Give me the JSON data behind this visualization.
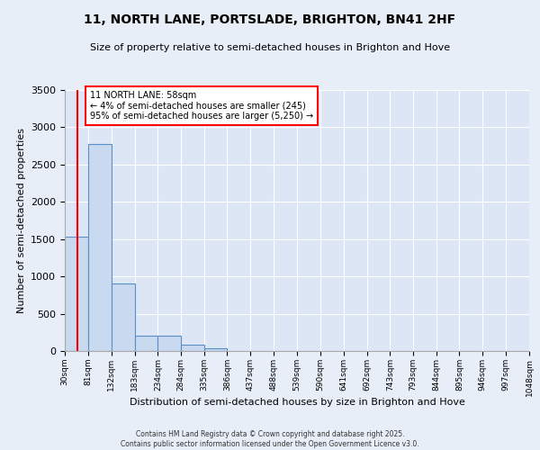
{
  "title": "11, NORTH LANE, PORTSLADE, BRIGHTON, BN41 2HF",
  "subtitle": "Size of property relative to semi-detached houses in Brighton and Hove",
  "xlabel": "Distribution of semi-detached houses by size in Brighton and Hove",
  "ylabel": "Number of semi-detached properties",
  "footer_line1": "Contains HM Land Registry data © Crown copyright and database right 2025.",
  "footer_line2": "Contains public sector information licensed under the Open Government Licence v3.0.",
  "bin_edges": [
    30,
    81,
    132,
    183,
    234,
    284,
    335,
    386,
    437,
    488,
    539,
    590,
    641,
    692,
    743,
    793,
    844,
    895,
    946,
    997,
    1048
  ],
  "bar_heights": [
    1530,
    2780,
    910,
    200,
    200,
    80,
    40,
    5,
    2,
    0,
    0,
    0,
    0,
    0,
    0,
    0,
    0,
    0,
    0,
    0
  ],
  "bar_color": "#c9d9f0",
  "bar_edge_color": "#5b8fc9",
  "red_line_x": 58,
  "ylim": [
    0,
    3500
  ],
  "yticks": [
    0,
    500,
    1000,
    1500,
    2000,
    2500,
    3000,
    3500
  ],
  "annotation_text": "11 NORTH LANE: 58sqm\n← 4% of semi-detached houses are smaller (245)\n95% of semi-detached houses are larger (5,250) →",
  "background_color": "#dce6f5",
  "fig_background_color": "#e8eef8",
  "grid_color": "#ffffff"
}
